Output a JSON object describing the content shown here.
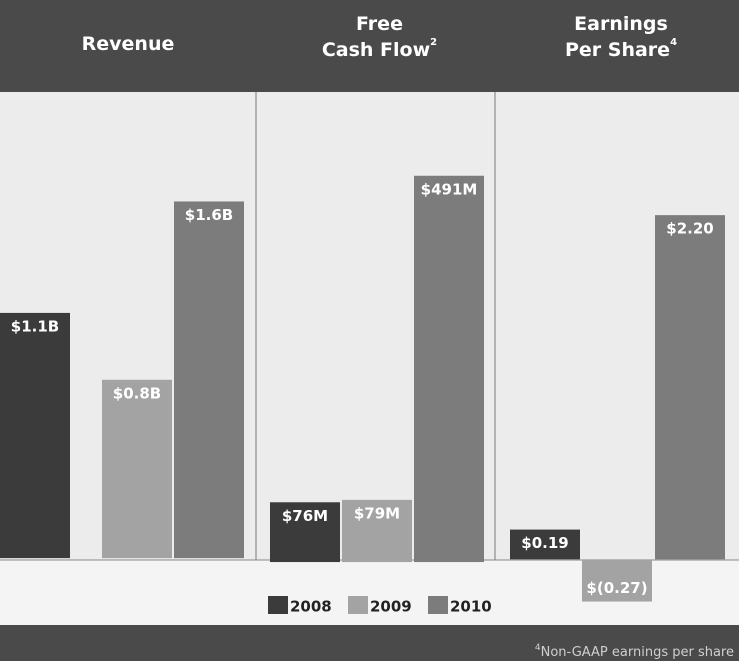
{
  "chart_data": [
    {
      "type": "bar",
      "title": "Revenue",
      "values": [
        1.1,
        0.8,
        1.6
      ],
      "value_labels": [
        "$1.1B",
        "$0.8B",
        "$1.6B"
      ],
      "ylim": [
        -0.3,
        2.1
      ]
    },
    {
      "type": "bar",
      "title": "Free Cash Flow",
      "title_note": "2",
      "values": [
        76,
        79,
        491
      ],
      "value_labels": [
        "$76M",
        "$79M",
        "$491M"
      ],
      "ylim": [
        -80,
        600
      ]
    },
    {
      "type": "bar",
      "title": "Earnings Per Share",
      "title_note": "4",
      "values": [
        0.19,
        -0.27,
        2.2
      ],
      "value_labels": [
        "$0.19",
        "$(0.27)",
        "$2.20"
      ],
      "ylim": [
        -0.42,
        3.0
      ]
    }
  ],
  "legend": [
    {
      "name": "2008",
      "color": "#3b3b3b"
    },
    {
      "name": "2009",
      "color": "#a3a3a3"
    },
    {
      "name": "2010",
      "color": "#7c7c7c"
    }
  ],
  "footnote": {
    "marker": "4",
    "text": "Non-GAAP earnings per share"
  }
}
